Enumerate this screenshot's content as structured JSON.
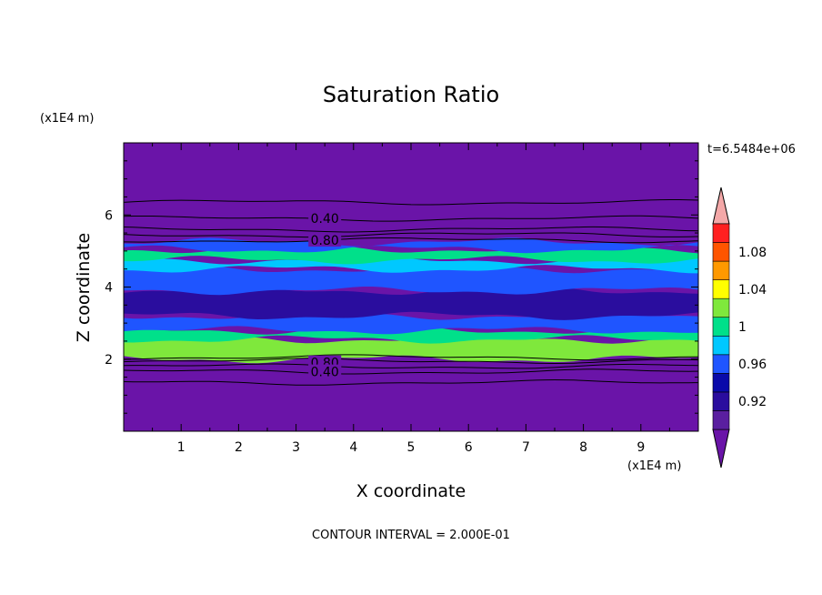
{
  "chart_data": {
    "type": "heatmap",
    "title": "Saturation Ratio",
    "xlabel": "X coordinate",
    "ylabel": "Z coordinate",
    "x_unit": "(x1E4 m)",
    "y_unit": "(x1E4 m)",
    "xlim": [
      0,
      10
    ],
    "ylim": [
      0,
      8
    ],
    "x_ticks": [
      "1",
      "2",
      "3",
      "4",
      "5",
      "6",
      "7",
      "8",
      "9"
    ],
    "y_ticks": [
      "2",
      "4",
      "6"
    ],
    "time_label": "t=6.5484e+06",
    "footer": "CONTOUR INTERVAL = 2.000E-01",
    "colorbar": {
      "levels": [
        0.9,
        0.92,
        0.94,
        0.96,
        0.98,
        1.0,
        1.02,
        1.04,
        1.06,
        1.08,
        1.1
      ],
      "labels": [
        "0.92",
        "0.96",
        "1",
        "1.04",
        "1.08"
      ],
      "colors": [
        "#5a1fa0",
        "#2a0d9e",
        "#0a0aaa",
        "#1f55ff",
        "#00c8ff",
        "#00e08a",
        "#7fe83c",
        "#ffff00",
        "#ff9900",
        "#ff5500",
        "#ff2020"
      ],
      "under_color": "#6a14a8",
      "over_color": "#f4a8a8"
    },
    "contour_labels": [
      {
        "text": "0.40",
        "x": 3.5,
        "z": 5.9
      },
      {
        "text": "0.80",
        "x": 3.5,
        "z": 5.3
      },
      {
        "text": "0.80",
        "x": 3.5,
        "z": 1.9
      },
      {
        "text": "0.40",
        "x": 3.5,
        "z": 1.65
      }
    ],
    "contour_lines_z": [
      6.35,
      5.9,
      5.6,
      5.45,
      5.3,
      2.05,
      1.95,
      1.8,
      1.65,
      1.35
    ],
    "background_value_color": "#6a14a8",
    "bands": [
      {
        "z0": 2.0,
        "z1": 2.55,
        "color": "#7fe83c"
      },
      {
        "z0": 2.55,
        "z1": 2.8,
        "color": "#00e08a"
      },
      {
        "z0": 2.8,
        "z1": 3.2,
        "color": "#1f55ff"
      },
      {
        "z0": 3.2,
        "z1": 3.9,
        "color": "#2a0d9e"
      },
      {
        "z0": 3.9,
        "z1": 4.5,
        "color": "#1f55ff"
      },
      {
        "z0": 4.5,
        "z1": 4.75,
        "color": "#00c8ff"
      },
      {
        "z0": 4.75,
        "z1": 5.05,
        "color": "#00e08a"
      },
      {
        "z0": 5.05,
        "z1": 5.25,
        "color": "#1f55ff"
      }
    ]
  }
}
